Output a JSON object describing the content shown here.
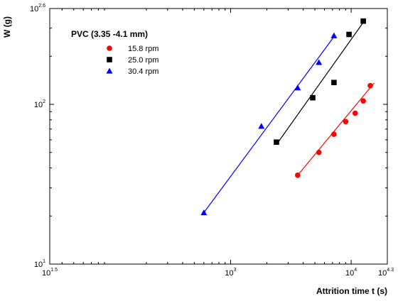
{
  "chart_data": {
    "type": "scatter",
    "x_scale": "log",
    "y_scale": "log",
    "xlabel": "Attrition time t (s)",
    "ylabel": "W (g)",
    "xlim": [
      31.62,
      19953
    ],
    "ylim": [
      10,
      398.1
    ],
    "x_ticks": [
      {
        "value": 31.62,
        "base": "10",
        "exp": "1.5"
      },
      {
        "value": 1000,
        "base": "10",
        "exp": "3"
      },
      {
        "value": 10000,
        "base": "10",
        "exp": "4"
      },
      {
        "value": 19953,
        "base": "10",
        "exp": "4.3"
      }
    ],
    "y_ticks": [
      {
        "value": 10,
        "base": "10",
        "exp": "1"
      },
      {
        "value": 100,
        "base": "10",
        "exp": "2"
      },
      {
        "value": 398.1,
        "base": "10",
        "exp": "2.6"
      }
    ],
    "grid": false,
    "legend": {
      "title": "PVC (3.35 -4.1 mm)",
      "position": "top-left"
    },
    "series": [
      {
        "name": "15.8 rpm",
        "marker": "circle",
        "color": "#ff0000",
        "x": [
          3600,
          5400,
          7200,
          9000,
          10800,
          12600,
          14400
        ],
        "y": [
          36,
          50,
          65,
          78,
          88,
          105,
          131
        ],
        "fit_x": [
          3600,
          15500
        ],
        "fit_y": [
          36,
          136
        ]
      },
      {
        "name": "25.0 rpm",
        "marker": "square",
        "color": "#000000",
        "x": [
          2400,
          4800,
          7200,
          9600,
          12600
        ],
        "y": [
          58,
          110,
          137,
          274,
          332
        ],
        "fit_x": [
          2400,
          12600
        ],
        "fit_y": [
          56,
          326
        ]
      },
      {
        "name": "30.4 rpm",
        "marker": "triangle",
        "color": "#0000ff",
        "x": [
          600,
          1800,
          3600,
          5400,
          7200
        ],
        "y": [
          21,
          73,
          127,
          183,
          269
        ],
        "fit_x": [
          600,
          7200
        ],
        "fit_y": [
          21,
          265
        ]
      }
    ]
  }
}
